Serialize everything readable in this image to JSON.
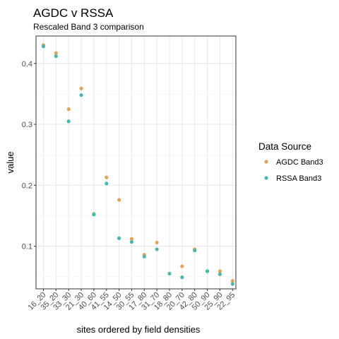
{
  "chart_data": {
    "type": "scatter",
    "title": "AGDC v RSSA",
    "subtitle": "Rescaled Band 3 comparison",
    "xlabel": "sites ordered by field densities",
    "ylabel": "value",
    "categories": [
      "16_20",
      "35_20",
      "33_30",
      "21_30",
      "40_60",
      "41_55",
      "14_50",
      "30_55",
      "17_80",
      "31_70",
      "18_80",
      "20_70",
      "42_80",
      "50_90",
      "25_90",
      "22_95"
    ],
    "yticks": [
      "0.1",
      "0.2",
      "0.3",
      "0.4"
    ],
    "ytick_values": [
      0.1,
      0.2,
      0.3,
      0.4
    ],
    "ylim": [
      0.03,
      0.445
    ],
    "grid": true,
    "legend_position": "right",
    "legend_title": "Data Source",
    "series": [
      {
        "name": "AGDC Band3",
        "color": "#E0A458",
        "values": [
          0.43,
          0.417,
          0.325,
          0.359,
          0.153,
          0.213,
          0.176,
          0.112,
          0.086,
          0.106,
          0.055,
          0.067,
          0.095,
          0.059,
          0.059,
          0.043
        ]
      },
      {
        "name": "RSSA Band3",
        "color": "#4DB6AC",
        "values": [
          0.428,
          0.412,
          0.305,
          0.348,
          0.152,
          0.203,
          0.113,
          0.107,
          0.083,
          0.095,
          0.055,
          0.049,
          0.093,
          0.059,
          0.054,
          0.038
        ]
      }
    ]
  }
}
